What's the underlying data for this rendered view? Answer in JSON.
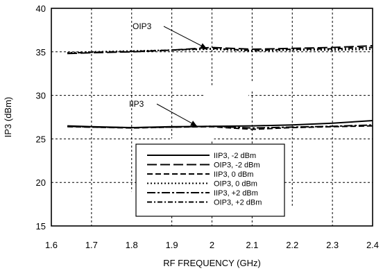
{
  "chart_data": {
    "type": "line",
    "xlabel": "RF FREQUENCY (GHz)",
    "ylabel": "IP3 (dBm)",
    "xlim": [
      1.6,
      2.4
    ],
    "ylim": [
      15,
      40
    ],
    "xticks": [
      "1.6",
      "1.7",
      "1.8",
      "1.9",
      "2",
      "2.1",
      "2.2",
      "2.3",
      "2.4"
    ],
    "yticks": [
      "15",
      "20",
      "25",
      "30",
      "35",
      "40"
    ],
    "grid": true,
    "legend_position": "bottom-center",
    "watermark_color": "#ffffff",
    "annotations": [
      {
        "text": "OIP3",
        "x": 1.98,
        "y": 35.3
      },
      {
        "text": "IIP3",
        "x": 1.98,
        "y": 26.4
      }
    ],
    "series": [
      {
        "name": "IIP3, -2 dBm",
        "style": "solid",
        "x": [
          1.64,
          1.7,
          1.8,
          1.9,
          2.0,
          2.1,
          2.2,
          2.3,
          2.4
        ],
        "y": [
          26.5,
          26.4,
          26.3,
          26.4,
          26.45,
          26.5,
          26.6,
          26.8,
          27.1
        ]
      },
      {
        "name": "OIP3, -2 dBm",
        "style": "longdash",
        "x": [
          1.64,
          1.7,
          1.8,
          1.9,
          2.0,
          2.1,
          2.2,
          2.3,
          2.4
        ],
        "y": [
          34.8,
          34.9,
          35.0,
          35.2,
          35.5,
          35.3,
          35.4,
          35.5,
          35.7
        ]
      },
      {
        "name": "IIP3, 0 dBm",
        "style": "dash",
        "x": [
          1.64,
          1.7,
          1.8,
          1.9,
          2.0,
          2.1,
          2.2,
          2.3,
          2.4
        ],
        "y": [
          26.4,
          26.35,
          26.25,
          26.35,
          26.4,
          26.1,
          26.3,
          26.4,
          26.5
        ]
      },
      {
        "name": "OIP3, 0 dBm",
        "style": "dot",
        "x": [
          1.64,
          1.7,
          1.8,
          1.9,
          2.0,
          2.1,
          2.2,
          2.3,
          2.4
        ],
        "y": [
          34.9,
          35.0,
          35.1,
          35.2,
          35.3,
          35.1,
          35.2,
          35.2,
          35.3
        ]
      },
      {
        "name": "IIP3, +2 dBm",
        "style": "longdashdot",
        "x": [
          1.64,
          1.7,
          1.8,
          1.9,
          2.0,
          2.1,
          2.2,
          2.3,
          2.4
        ],
        "y": [
          26.45,
          26.35,
          26.3,
          26.35,
          26.45,
          26.25,
          26.35,
          26.45,
          26.6
        ]
      },
      {
        "name": "OIP3, +2 dBm",
        "style": "dashdot",
        "x": [
          1.64,
          1.7,
          1.8,
          1.9,
          2.0,
          2.1,
          2.2,
          2.3,
          2.4
        ],
        "y": [
          34.85,
          34.95,
          35.05,
          35.2,
          35.4,
          35.15,
          35.3,
          35.35,
          35.5
        ]
      }
    ]
  }
}
